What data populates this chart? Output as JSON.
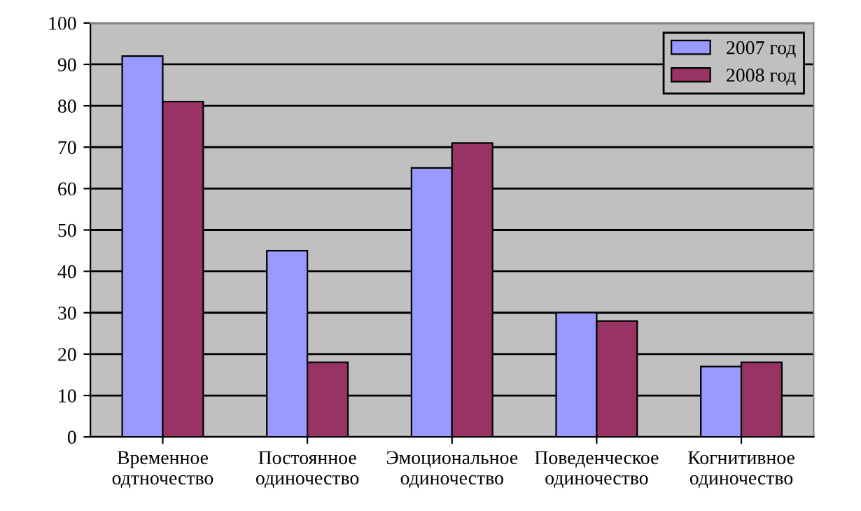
{
  "chart_data": {
    "type": "bar",
    "categories": [
      "Временное\nодтночество",
      "Постоянное\nодиночество",
      "Эмоциональное\nодиночество",
      "Поведенческое\nодиночество",
      "Когнитивное\nодиночество"
    ],
    "series": [
      {
        "name": "2007 год",
        "color": "#9999ff",
        "values": [
          92,
          45,
          65,
          30,
          17
        ]
      },
      {
        "name": "2008 год",
        "color": "#993366",
        "values": [
          81,
          18,
          71,
          28,
          18
        ]
      }
    ],
    "ylim": [
      0,
      100
    ],
    "yticks": [
      0,
      10,
      20,
      30,
      40,
      50,
      60,
      70,
      80,
      90,
      100
    ],
    "grid": "y",
    "legend": "top right"
  }
}
